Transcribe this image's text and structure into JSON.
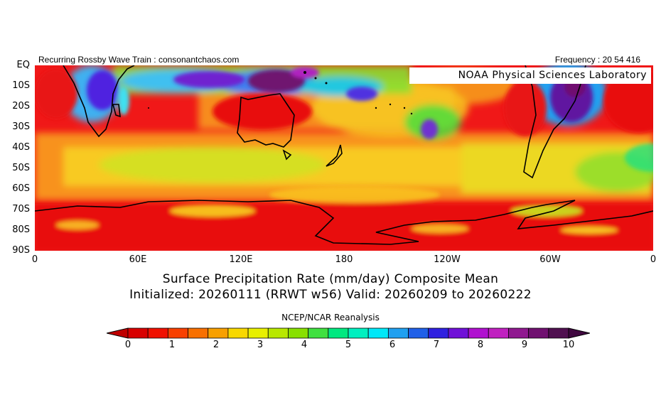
{
  "header": {
    "left": "Recurring Rossby Wave Train : consonantchaos.com",
    "right": "Frequency : 20 54 416"
  },
  "lab_badge": "NOAA Physical Sciences Laboratory",
  "y_axis": [
    "EQ",
    "10S",
    "20S",
    "30S",
    "40S",
    "50S",
    "60S",
    "70S",
    "80S",
    "90S"
  ],
  "x_axis": [
    "0",
    "60E",
    "120E",
    "180",
    "120W",
    "60W",
    "0"
  ],
  "title_line1": "Surface Precipitation Rate (mm/day) Composite Mean",
  "title_line2": "Initialized: 20260111 (RRWT w56) Valid: 20260209 to 20260222",
  "source": "NCEP/NCAR Reanalysis",
  "colorbar": {
    "labels": [
      "0",
      "1",
      "2",
      "3",
      "4",
      "5",
      "6",
      "7",
      "8",
      "9",
      "10"
    ],
    "colors": [
      "#d80000",
      "#f01000",
      "#f84000",
      "#f87000",
      "#f8a000",
      "#f8d800",
      "#e8f000",
      "#b8e800",
      "#88e000",
      "#40e040",
      "#00e880",
      "#00f0c0",
      "#00e8f8",
      "#20a0f0",
      "#2060e8",
      "#3020e0",
      "#7010d8",
      "#b010d0",
      "#c020c0",
      "#901890",
      "#701070",
      "#501050"
    ],
    "under": "#c00000",
    "over": "#400840"
  }
}
